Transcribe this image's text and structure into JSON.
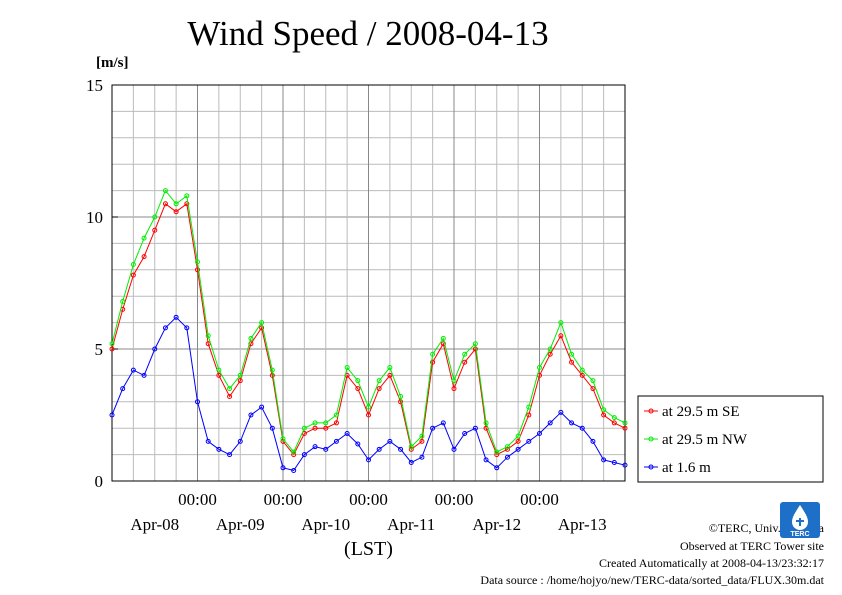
{
  "title": "Wind Speed / 2008-04-13",
  "unit_label": "[m/s]",
  "credits": {
    "copyright": "©TERC, Univ. Tsukuba",
    "observed": "Observed at TERC Tower site",
    "created": "Created Automatically at 2008-04-13/23:32:17",
    "source": "Data source : /home/hojyo/new/TERC-data/sorted_data/FLUX.30m.dat",
    "logo_text": "TERC"
  },
  "chart_data": {
    "type": "line",
    "title": "Wind Speed / 2008-04-13",
    "ylabel": "[m/s]",
    "xlabel": "(LST)",
    "ylim": [
      0,
      15
    ],
    "xlim_hours": [
      0,
      144
    ],
    "yticks": [
      0,
      5,
      10,
      15
    ],
    "time_labels": [
      "00:00",
      "00:00",
      "00:00",
      "00:00",
      "00:00"
    ],
    "date_labels": [
      "Apr-08",
      "Apr-09",
      "Apr-10",
      "Apr-11",
      "Apr-12",
      "Apr-13"
    ],
    "grid": true,
    "legend_position": "right",
    "x_hours": [
      0,
      3,
      6,
      9,
      12,
      15,
      18,
      21,
      24,
      27,
      30,
      33,
      36,
      39,
      42,
      45,
      48,
      51,
      54,
      57,
      60,
      63,
      66,
      69,
      72,
      75,
      78,
      81,
      84,
      87,
      90,
      93,
      96,
      99,
      102,
      105,
      108,
      111,
      114,
      117,
      120,
      123,
      126,
      129,
      132,
      135,
      138,
      141,
      144
    ],
    "series": [
      {
        "name": "at 29.5 m SE",
        "color": "#ff0000",
        "values": [
          5.0,
          6.5,
          7.8,
          8.5,
          9.5,
          10.5,
          10.2,
          10.5,
          8.0,
          5.2,
          4.0,
          3.2,
          3.8,
          5.2,
          5.8,
          4.0,
          1.5,
          1.0,
          1.8,
          2.0,
          2.0,
          2.2,
          4.0,
          3.5,
          2.5,
          3.5,
          4.0,
          3.0,
          1.2,
          1.5,
          4.5,
          5.2,
          3.5,
          4.5,
          5.0,
          2.0,
          1.0,
          1.2,
          1.5,
          2.5,
          4.0,
          4.8,
          5.5,
          4.5,
          4.0,
          3.5,
          2.5,
          2.2,
          2.0
        ]
      },
      {
        "name": "at 29.5 m NW",
        "color": "#00ee00",
        "values": [
          5.2,
          6.8,
          8.2,
          9.2,
          10.0,
          11.0,
          10.5,
          10.8,
          8.3,
          5.5,
          4.2,
          3.5,
          4.0,
          5.4,
          6.0,
          4.2,
          1.6,
          1.1,
          2.0,
          2.2,
          2.2,
          2.5,
          4.3,
          3.8,
          2.8,
          3.8,
          4.3,
          3.2,
          1.3,
          1.7,
          4.8,
          5.4,
          3.8,
          4.8,
          5.2,
          2.2,
          1.1,
          1.3,
          1.7,
          2.8,
          4.3,
          5.0,
          6.0,
          4.8,
          4.2,
          3.8,
          2.7,
          2.4,
          2.2
        ]
      },
      {
        "name": "at 1.6 m",
        "color": "#0000ff",
        "values": [
          2.5,
          3.5,
          4.2,
          4.0,
          5.0,
          5.8,
          6.2,
          5.8,
          3.0,
          1.5,
          1.2,
          1.0,
          1.5,
          2.5,
          2.8,
          2.0,
          0.5,
          0.4,
          1.0,
          1.3,
          1.2,
          1.5,
          1.8,
          1.4,
          0.8,
          1.2,
          1.5,
          1.2,
          0.7,
          0.9,
          2.0,
          2.2,
          1.2,
          1.8,
          2.0,
          0.8,
          0.5,
          0.9,
          1.2,
          1.5,
          1.8,
          2.2,
          2.6,
          2.2,
          2.0,
          1.5,
          0.8,
          0.7,
          0.6
        ]
      }
    ]
  }
}
